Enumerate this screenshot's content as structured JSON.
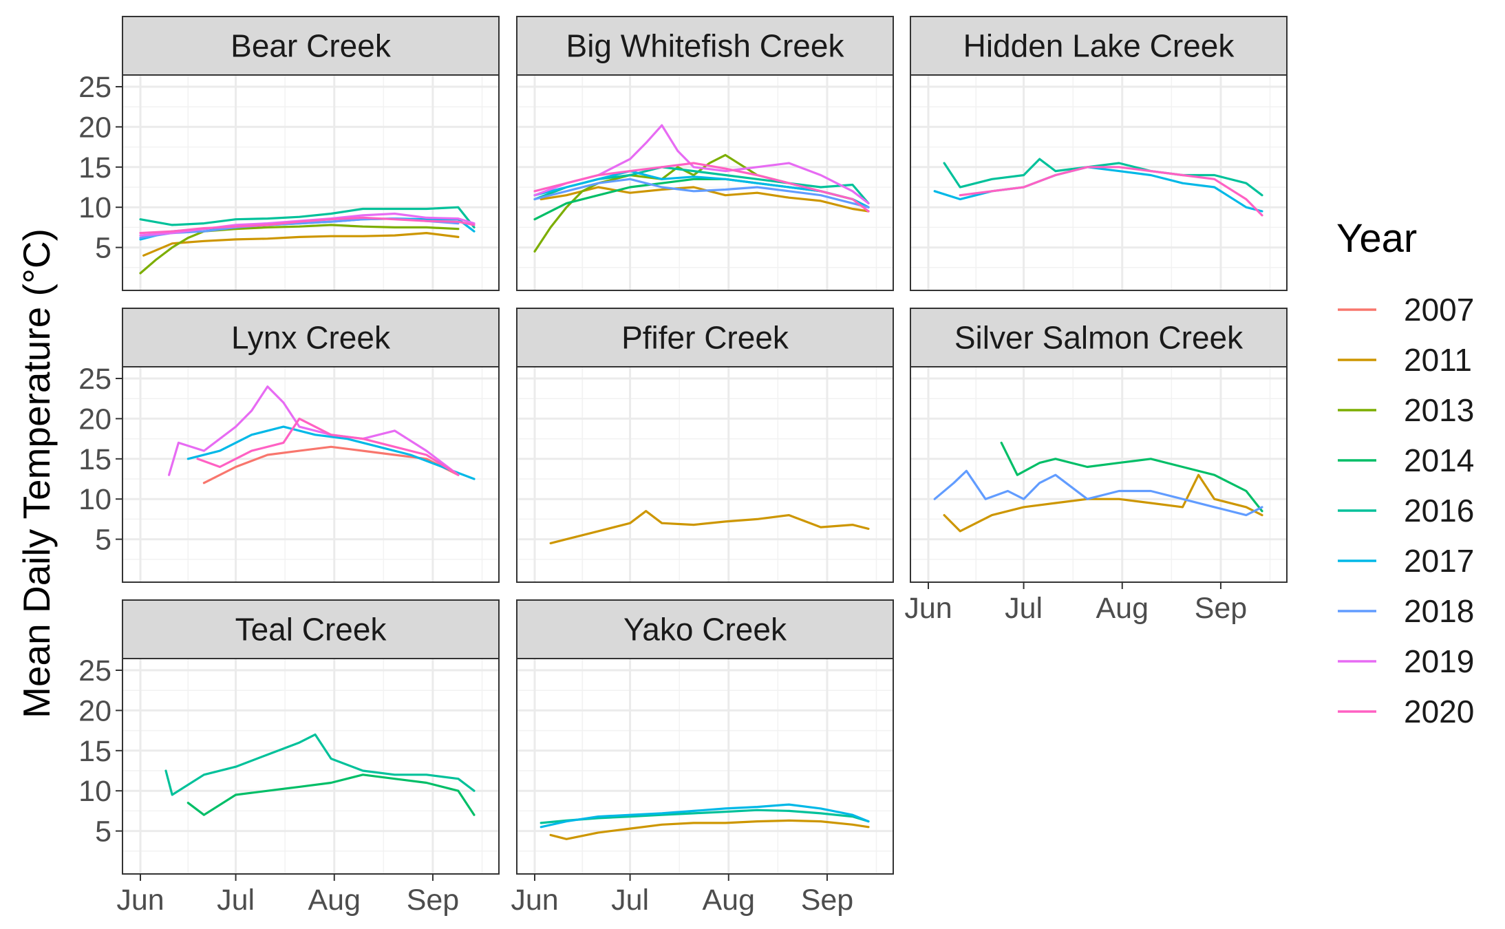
{
  "chart_data": {
    "type": "line",
    "layout": "small-multiples",
    "ylabel": "Mean Daily Temperature (°C)",
    "xlabel": "",
    "ylim": [
      0,
      25
    ],
    "y_ticks": [
      5,
      10,
      15,
      20,
      25
    ],
    "x_ticks": [
      "Jun",
      "Jul",
      "Aug",
      "Sep"
    ],
    "x_domain_days": [
      0,
      105
    ],
    "grid": true,
    "legend": {
      "title": "Year",
      "placement": "right",
      "entries": [
        {
          "name": "2007",
          "color": "#F8766D"
        },
        {
          "name": "2011",
          "color": "#CD9600"
        },
        {
          "name": "2013",
          "color": "#7CAE00"
        },
        {
          "name": "2014",
          "color": "#00BE67"
        },
        {
          "name": "2016",
          "color": "#00C19A"
        },
        {
          "name": "2017",
          "color": "#00B8E7"
        },
        {
          "name": "2018",
          "color": "#619CFF"
        },
        {
          "name": "2019",
          "color": "#E76BF3"
        },
        {
          "name": "2020",
          "color": "#FF61C3"
        }
      ]
    },
    "panels": [
      {
        "title": "Bear Creek",
        "series": [
          {
            "name": "2011",
            "x": [
              1,
              10,
              20,
              30,
              40,
              50,
              60,
              70,
              80,
              90,
              100
            ],
            "y": [
              4,
              5.5,
              5.8,
              6,
              6.1,
              6.3,
              6.4,
              6.4,
              6.5,
              6.8,
              6.3
            ]
          },
          {
            "name": "2013",
            "x": [
              0,
              5,
              10,
              15,
              20,
              30,
              40,
              50,
              60,
              70,
              80,
              90,
              100
            ],
            "y": [
              1.8,
              3.5,
              5,
              6.2,
              7,
              7.3,
              7.5,
              7.6,
              7.8,
              7.6,
              7.5,
              7.5,
              7.3
            ]
          },
          {
            "name": "2016",
            "x": [
              0,
              10,
              20,
              30,
              40,
              50,
              60,
              70,
              80,
              90,
              100,
              105
            ],
            "y": [
              8.5,
              7.8,
              8,
              8.5,
              8.6,
              8.8,
              9.2,
              9.8,
              9.8,
              9.8,
              10,
              7.5
            ]
          },
          {
            "name": "2017",
            "x": [
              0,
              10,
              20,
              30,
              40,
              50,
              60,
              70,
              80,
              90,
              100,
              105
            ],
            "y": [
              6,
              7,
              7.3,
              7.6,
              7.8,
              8,
              8.2,
              8.5,
              8.6,
              8.5,
              8.5,
              7
            ]
          },
          {
            "name": "2018",
            "x": [
              0,
              10,
              20,
              30,
              40,
              50,
              60,
              70,
              80,
              90,
              100
            ],
            "y": [
              6.2,
              6.8,
              7,
              7.5,
              7.8,
              8,
              8.2,
              8.5,
              8.6,
              8.3,
              8
            ]
          },
          {
            "name": "2019",
            "x": [
              0,
              10,
              20,
              30,
              40,
              50,
              60,
              70,
              80,
              90,
              100,
              105
            ],
            "y": [
              6.5,
              6.8,
              7.3,
              7.8,
              8,
              8.3,
              8.6,
              9,
              9.2,
              8.7,
              8.6,
              8
            ]
          },
          {
            "name": "2020",
            "x": [
              0,
              10,
              20,
              30,
              40,
              50,
              60,
              70,
              80,
              90,
              100,
              105
            ],
            "y": [
              6.8,
              7,
              7.4,
              7.6,
              7.8,
              8.2,
              8.5,
              8.7,
              8.5,
              8.3,
              8.2,
              7.8
            ]
          }
        ]
      },
      {
        "title": "Big Whitefish Creek",
        "series": [
          {
            "name": "2011",
            "x": [
              2,
              10,
              20,
              30,
              40,
              50,
              60,
              70,
              80,
              90,
              100,
              105
            ],
            "y": [
              11,
              11.5,
              12.5,
              11.8,
              12.2,
              12.5,
              11.5,
              11.8,
              11.2,
              10.8,
              9.8,
              9.5
            ]
          },
          {
            "name": "2013",
            "x": [
              0,
              5,
              10,
              15,
              20,
              30,
              40,
              45,
              50,
              55,
              60,
              70,
              80,
              90,
              100,
              105
            ],
            "y": [
              4.5,
              7.5,
              10,
              12,
              13,
              14,
              13.5,
              15,
              14,
              15.5,
              16.5,
              14,
              13,
              12,
              11,
              10
            ]
          },
          {
            "name": "2014",
            "x": [
              0,
              10,
              20,
              30,
              40,
              50,
              60,
              70,
              80,
              90,
              100,
              105
            ],
            "y": [
              8.5,
              10.5,
              11.5,
              12.5,
              13,
              13.5,
              13.5,
              13,
              12.5,
              12,
              11,
              10
            ]
          },
          {
            "name": "2016",
            "x": [
              0,
              10,
              20,
              30,
              40,
              50,
              60,
              70,
              80,
              90,
              100,
              105
            ],
            "y": [
              11,
              12.5,
              13.5,
              14,
              15,
              14.5,
              14,
              13.5,
              13,
              12.5,
              12.8,
              10.5
            ]
          },
          {
            "name": "2017",
            "x": [
              0,
              10,
              20,
              30,
              40,
              50,
              60,
              70,
              80,
              90,
              100,
              105
            ],
            "y": [
              11.5,
              12.5,
              13.5,
              14.5,
              13.5,
              13.8,
              13.5,
              13,
              12.5,
              12,
              11,
              10
            ]
          },
          {
            "name": "2018",
            "x": [
              0,
              10,
              20,
              30,
              40,
              50,
              60,
              70,
              80,
              90,
              100,
              105
            ],
            "y": [
              11,
              12,
              13,
              13.5,
              12.5,
              12,
              12.2,
              12.5,
              12,
              11.5,
              10.5,
              10
            ]
          },
          {
            "name": "2019",
            "x": [
              0,
              10,
              20,
              30,
              35,
              40,
              45,
              50,
              60,
              70,
              80,
              90,
              100,
              105
            ],
            "y": [
              11.5,
              13,
              14,
              16,
              18,
              20.2,
              17,
              15,
              14.5,
              15,
              15.5,
              14,
              12,
              10.5
            ]
          },
          {
            "name": "2020",
            "x": [
              0,
              10,
              20,
              30,
              40,
              50,
              60,
              70,
              80,
              90,
              100,
              105
            ],
            "y": [
              12,
              13,
              14,
              14.5,
              15,
              15.5,
              14.8,
              14,
              13,
              12,
              11,
              9.5
            ]
          }
        ]
      },
      {
        "title": "Hidden Lake Creek",
        "series": [
          {
            "name": "2016",
            "x": [
              5,
              10,
              20,
              30,
              35,
              40,
              50,
              60,
              70,
              80,
              90,
              100,
              105
            ],
            "y": [
              15.5,
              12.5,
              13.5,
              14,
              16,
              14.5,
              15,
              15.5,
              14.5,
              14,
              14,
              13,
              11.5
            ]
          },
          {
            "name": "2017",
            "x": [
              2,
              10,
              20,
              30,
              40,
              50,
              60,
              70,
              80,
              90,
              100,
              105
            ],
            "y": [
              12,
              11,
              12,
              12.5,
              14,
              15,
              14.5,
              14,
              13,
              12.5,
              10,
              9.5
            ]
          },
          {
            "name": "2020",
            "x": [
              10,
              20,
              30,
              40,
              50,
              60,
              70,
              80,
              90,
              100,
              105
            ],
            "y": [
              11.5,
              12,
              12.5,
              14,
              15,
              15,
              14.5,
              14,
              13.5,
              11,
              9
            ]
          }
        ]
      },
      {
        "title": "Lynx Creek",
        "series": [
          {
            "name": "2007",
            "x": [
              20,
              30,
              40,
              50,
              60,
              70,
              80,
              90,
              100
            ],
            "y": [
              12,
              14,
              15.5,
              16,
              16.5,
              16,
              15.5,
              15,
              13
            ]
          },
          {
            "name": "2017",
            "x": [
              15,
              25,
              35,
              45,
              55,
              65,
              75,
              85,
              95,
              105
            ],
            "y": [
              15,
              16,
              18,
              19,
              18,
              17.5,
              16.5,
              15.5,
              14,
              12.5
            ]
          },
          {
            "name": "2019",
            "x": [
              9,
              12,
              20,
              30,
              35,
              40,
              45,
              50,
              60,
              70,
              80,
              90,
              100
            ],
            "y": [
              13,
              17,
              16,
              19,
              21,
              24,
              22,
              19,
              18,
              17.5,
              18.5,
              16,
              13
            ]
          },
          {
            "name": "2020",
            "x": [
              18,
              25,
              35,
              45,
              50,
              60,
              70,
              80,
              90,
              100
            ],
            "y": [
              15,
              14,
              16,
              17,
              20,
              18,
              17.5,
              16.5,
              15.5,
              13
            ]
          }
        ]
      },
      {
        "title": "Pfifer Creek",
        "series": [
          {
            "name": "2011",
            "x": [
              5,
              10,
              20,
              30,
              35,
              40,
              50,
              60,
              70,
              80,
              90,
              100,
              105
            ],
            "y": [
              4.5,
              5,
              6,
              7,
              8.5,
              7,
              6.8,
              7.2,
              7.5,
              8,
              6.5,
              6.8,
              6.3
            ]
          }
        ]
      },
      {
        "title": "Silver Salmon Creek",
        "series": [
          {
            "name": "2011",
            "x": [
              5,
              10,
              20,
              30,
              40,
              50,
              60,
              70,
              80,
              85,
              90,
              100,
              105
            ],
            "y": [
              8,
              6,
              8,
              9,
              9.5,
              10,
              10,
              9.5,
              9,
              13,
              10,
              9,
              8
            ]
          },
          {
            "name": "2014",
            "x": [
              23,
              28,
              35,
              40,
              50,
              60,
              70,
              80,
              90,
              100,
              105
            ],
            "y": [
              17,
              13,
              14.5,
              15,
              14,
              14.5,
              15,
              14,
              13,
              11,
              8.5
            ]
          },
          {
            "name": "2018",
            "x": [
              2,
              8,
              12,
              18,
              25,
              30,
              35,
              40,
              50,
              60,
              70,
              80,
              90,
              100,
              105
            ],
            "y": [
              10,
              12,
              13.5,
              10,
              11,
              10,
              12,
              13,
              10,
              11,
              11,
              10,
              9,
              8,
              9
            ]
          }
        ]
      },
      {
        "title": "Teal Creek",
        "series": [
          {
            "name": "2014",
            "x": [
              15,
              20,
              30,
              40,
              50,
              60,
              70,
              80,
              90,
              100,
              105
            ],
            "y": [
              8.5,
              7,
              9.5,
              10,
              10.5,
              11,
              12,
              11.5,
              11,
              10,
              7
            ]
          },
          {
            "name": "2016",
            "x": [
              8,
              10,
              20,
              30,
              40,
              50,
              55,
              60,
              70,
              80,
              90,
              100,
              105
            ],
            "y": [
              12.5,
              9.5,
              12,
              13,
              14.5,
              16,
              17,
              14,
              12.5,
              12,
              12,
              11.5,
              10
            ]
          }
        ]
      },
      {
        "title": "Yako Creek",
        "series": [
          {
            "name": "2011",
            "x": [
              5,
              10,
              20,
              30,
              40,
              50,
              60,
              70,
              80,
              90,
              100,
              105
            ],
            "y": [
              4.5,
              4,
              4.8,
              5.3,
              5.8,
              6,
              6,
              6.2,
              6.3,
              6.2,
              5.8,
              5.5
            ]
          },
          {
            "name": "2016",
            "x": [
              2,
              10,
              20,
              30,
              40,
              50,
              60,
              70,
              80,
              90,
              100,
              105
            ],
            "y": [
              6,
              6.3,
              6.6,
              6.8,
              7,
              7.2,
              7.4,
              7.6,
              7.5,
              7.2,
              6.8,
              6.2
            ]
          },
          {
            "name": "2017",
            "x": [
              2,
              10,
              20,
              30,
              40,
              50,
              60,
              70,
              80,
              90,
              100,
              105
            ],
            "y": [
              5.5,
              6.2,
              6.8,
              7,
              7.2,
              7.5,
              7.8,
              8,
              8.3,
              7.8,
              7,
              6.2
            ]
          }
        ]
      }
    ]
  }
}
